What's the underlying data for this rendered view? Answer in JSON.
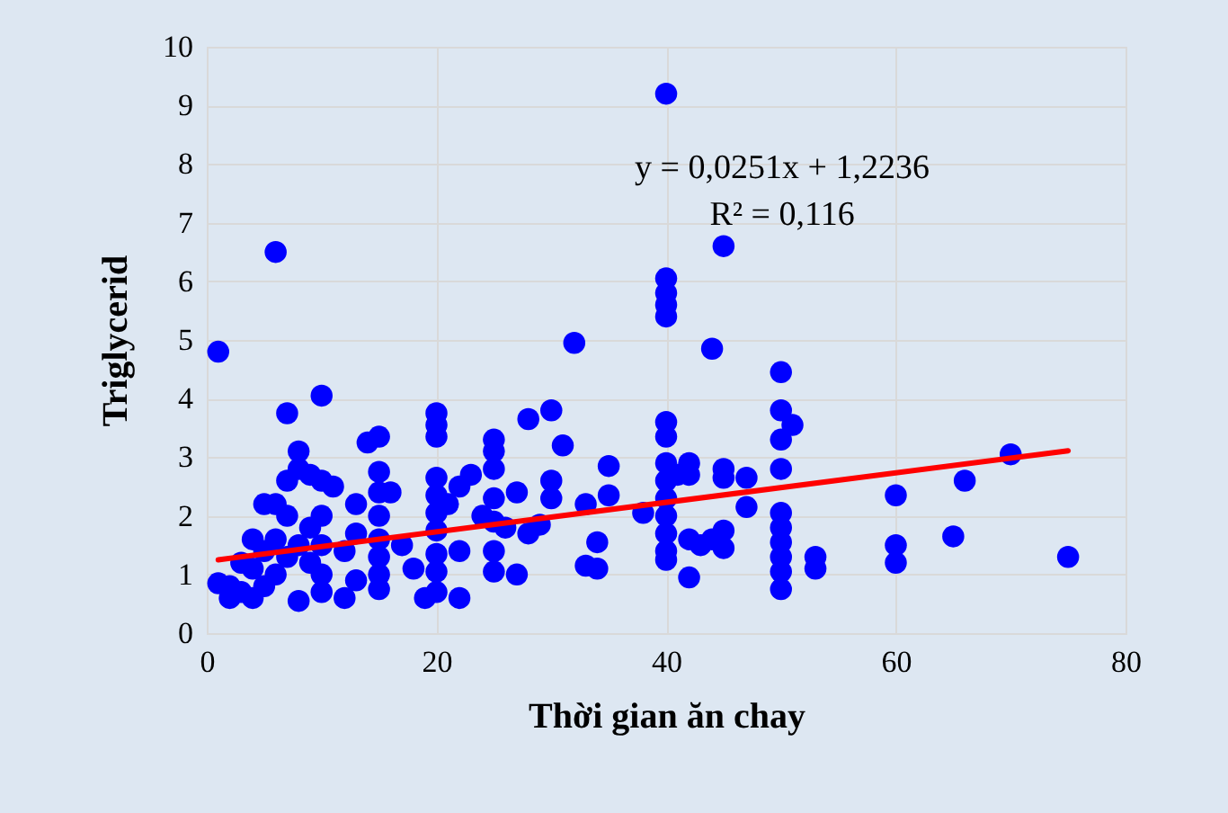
{
  "chart_data": {
    "type": "scatter",
    "xlabel": "Thời gian ăn chay",
    "ylabel": "Triglycerid",
    "annotations": [
      "y = 0,0251x + 1,2236",
      "R² = 0,116"
    ],
    "xlim": [
      0,
      80
    ],
    "xticks": [
      0,
      20,
      40,
      60,
      80
    ],
    "ylim": [
      0,
      10
    ],
    "yticks": [
      0,
      1,
      2,
      3,
      4,
      5,
      6,
      7,
      8,
      9,
      10
    ],
    "grid": true,
    "series": [
      {
        "marker": "circle",
        "color": "#0000ff",
        "x": [
          1,
          6,
          40,
          40,
          40,
          40,
          40,
          45,
          44,
          32,
          50,
          50,
          51,
          50,
          50,
          50,
          50,
          50,
          50,
          50,
          50,
          53,
          53,
          60,
          60,
          60,
          65,
          66,
          70,
          75,
          40,
          40,
          40,
          40,
          40,
          40,
          40,
          40,
          40,
          41,
          42,
          42,
          42,
          42,
          43,
          44,
          45,
          45,
          45,
          45,
          47,
          47,
          38,
          35,
          35,
          34,
          34,
          33,
          33,
          30,
          31,
          30,
          30,
          29,
          28,
          28,
          27,
          27,
          26,
          25,
          25,
          25,
          25,
          25,
          25,
          25,
          24,
          23,
          22,
          22,
          22,
          21,
          20,
          20,
          20,
          20,
          20,
          20,
          20,
          20,
          20,
          20,
          19,
          18,
          17,
          16,
          15,
          15,
          15,
          15,
          15,
          15,
          15,
          15,
          14,
          13,
          13,
          13,
          12,
          12,
          11,
          10,
          10,
          10,
          10,
          10,
          10,
          9,
          9,
          9,
          8,
          8,
          8,
          8,
          7,
          7,
          7,
          7,
          6,
          6,
          6,
          5,
          5,
          5,
          4,
          4,
          4,
          3,
          3,
          2,
          2,
          1
        ],
        "values": [
          4.8,
          6.5,
          9.2,
          6.05,
          5.8,
          5.6,
          5.4,
          6.6,
          4.85,
          4.95,
          4.45,
          3.8,
          3.55,
          3.3,
          2.8,
          2.05,
          1.8,
          1.55,
          1.3,
          1.05,
          0.75,
          1.3,
          1.1,
          2.35,
          1.5,
          1.2,
          1.65,
          2.6,
          3.05,
          1.3,
          3.6,
          3.35,
          2.9,
          2.6,
          2.3,
          2.0,
          1.7,
          1.4,
          1.25,
          2.7,
          2.9,
          2.7,
          1.6,
          0.95,
          1.5,
          1.6,
          2.8,
          2.65,
          1.75,
          1.45,
          2.65,
          2.15,
          2.05,
          2.85,
          2.35,
          1.55,
          1.1,
          1.15,
          2.2,
          3.8,
          3.2,
          2.6,
          2.3,
          1.85,
          3.65,
          1.7,
          2.4,
          1.0,
          1.8,
          3.3,
          3.1,
          2.8,
          2.3,
          1.9,
          1.4,
          1.05,
          2.0,
          2.7,
          2.5,
          1.4,
          0.6,
          2.2,
          3.75,
          3.55,
          3.35,
          2.65,
          2.35,
          2.05,
          1.75,
          1.35,
          1.05,
          0.7,
          0.6,
          1.1,
          1.5,
          2.4,
          3.35,
          2.75,
          2.4,
          2.0,
          1.6,
          1.3,
          1.0,
          0.75,
          3.25,
          2.2,
          1.7,
          0.9,
          1.4,
          0.6,
          2.5,
          4.05,
          2.6,
          2.0,
          1.5,
          1.0,
          0.7,
          2.7,
          1.8,
          1.2,
          3.1,
          2.8,
          1.5,
          0.55,
          3.75,
          2.6,
          2.0,
          1.3,
          2.2,
          1.6,
          1.0,
          2.2,
          1.4,
          0.8,
          1.6,
          1.1,
          0.6,
          1.2,
          0.7,
          0.8,
          0.6,
          0.85
        ]
      },
      {
        "type": "line",
        "color": "#ff0000",
        "x": [
          1,
          75
        ],
        "values": [
          1.25,
          3.11
        ]
      }
    ]
  }
}
